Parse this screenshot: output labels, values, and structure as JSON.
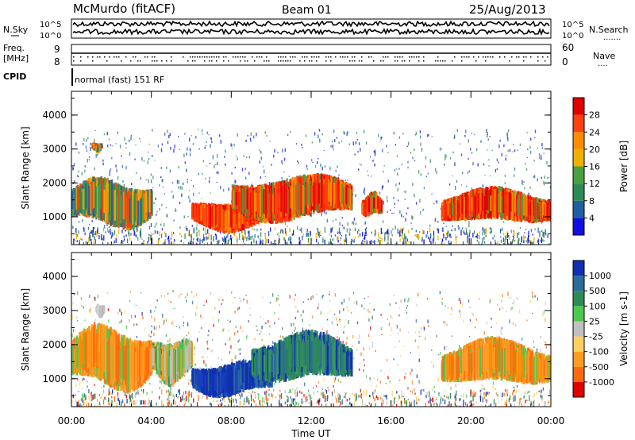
{
  "header": {
    "station": "McMurdo (fitACF)",
    "beam": "Beam 01",
    "date": "25/Aug/2013"
  },
  "strip_labels": {
    "nsky": "N.Sky",
    "nsearch": "N.Search",
    "freq": "Freq.",
    "freq_unit": "[MHz]",
    "nave": "Nave",
    "cpid": "CPID",
    "cpid_value": "normal (fast) 151 RF"
  },
  "strip_ticks": {
    "noise_left_top": "10^5",
    "noise_left_bottom": "10^0",
    "noise_right_top": "10^5",
    "noise_right_bottom": "10^0",
    "freq_left_top": "9",
    "freq_left_bottom": "8",
    "nave_right_top": "60",
    "nave_right_bottom": "0"
  },
  "colors": {
    "power_scale": [
      "#1010e0",
      "#2060a0",
      "#2e8b57",
      "#4aa040",
      "#f0b000",
      "#ff8c00",
      "#ff4010",
      "#e00000"
    ],
    "velocity_scale": [
      "#1030b0",
      "#2c6c9c",
      "#2e8b57",
      "#4cc84c",
      "#c0c0c0",
      "#ffd060",
      "#ff9a20",
      "#ff6a10",
      "#e00000"
    ]
  },
  "chart_data": [
    {
      "type": "heatmap",
      "title": "",
      "xlabel": "",
      "ylabel": "Slant Range [km]",
      "x_ticks": [
        "00:00",
        "04:00",
        "08:00",
        "12:00",
        "16:00",
        "20:00",
        "00:00"
      ],
      "y_ticks": [
        "1000",
        "2000",
        "3000",
        "4000"
      ],
      "xlim_hours": [
        0,
        24
      ],
      "ylim_km": [
        180,
        4700
      ],
      "colorbar": {
        "label": "Power [dB]",
        "ticks": [
          "4",
          "8",
          "12",
          "16",
          "20",
          "24",
          "28"
        ],
        "range": [
          0,
          30
        ]
      },
      "features": [
        {
          "hours": [
            0,
            4
          ],
          "range_km": [
            700,
            2100
          ],
          "value": "12-24 dB"
        },
        {
          "hours": [
            1,
            1.5
          ],
          "range_km": [
            2900,
            3200
          ],
          "value": "12-20 dB"
        },
        {
          "hours": [
            6,
            10
          ],
          "range_km": [
            600,
            1500
          ],
          "value": "24-30 dB"
        },
        {
          "hours": [
            8,
            14
          ],
          "range_km": [
            900,
            2200
          ],
          "value": "12-28 dB"
        },
        {
          "hours": [
            14.5,
            15.5
          ],
          "range_km": [
            1000,
            1700
          ],
          "value": "8-28 dB"
        },
        {
          "hours": [
            18.5,
            24
          ],
          "range_km": [
            800,
            1800
          ],
          "value": "12-28 dB"
        }
      ]
    },
    {
      "type": "heatmap",
      "title": "",
      "xlabel": "Time UT",
      "ylabel": "Slant Range [km]",
      "x_ticks": [
        "00:00",
        "04:00",
        "08:00",
        "12:00",
        "16:00",
        "20:00",
        "00:00"
      ],
      "y_ticks": [
        "1000",
        "2000",
        "3000",
        "4000"
      ],
      "xlim_hours": [
        0,
        24
      ],
      "ylim_km": [
        180,
        4700
      ],
      "colorbar": {
        "label": "Velocity [m s-1]",
        "ticks": [
          "1000",
          "500",
          "100",
          "25",
          "-25",
          "-100",
          "-500",
          "-1000"
        ],
        "range": [
          -1000,
          1000
        ]
      },
      "features": [
        {
          "hours": [
            0,
            4
          ],
          "range_km": [
            700,
            2500
          ],
          "value": "-100 to -500 m/s"
        },
        {
          "hours": [
            1.2,
            1.6
          ],
          "range_km": [
            2800,
            3200
          ],
          "value": "-25 to 25 m/s"
        },
        {
          "hours": [
            4,
            6
          ],
          "range_km": [
            900,
            2200
          ],
          "value": "-25 to 100 m/s"
        },
        {
          "hours": [
            6,
            10
          ],
          "range_km": [
            500,
            1500
          ],
          "value": "500 to 1000 m/s"
        },
        {
          "hours": [
            9,
            14
          ],
          "range_km": [
            900,
            2300
          ],
          "value": "100 to 1000 m/s"
        },
        {
          "hours": [
            18.5,
            24
          ],
          "range_km": [
            800,
            2100
          ],
          "value": "-100 to -500 m/s"
        }
      ]
    }
  ]
}
